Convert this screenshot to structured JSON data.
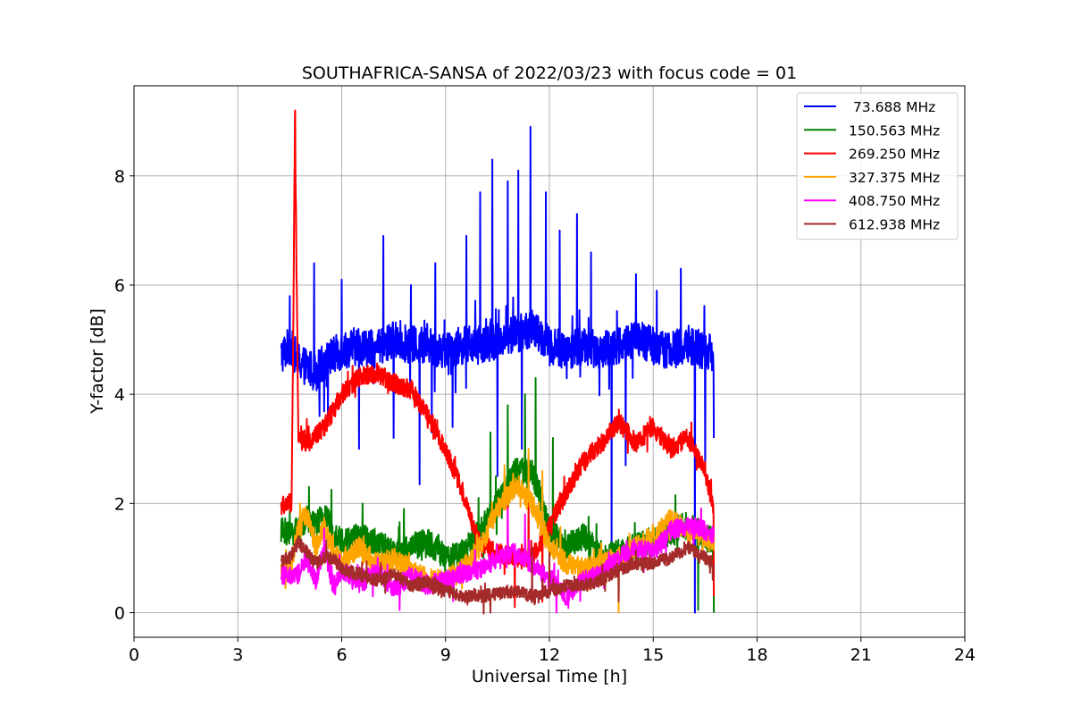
{
  "chart_data": {
    "type": "line",
    "title": "SOUTHAFRICA-SANSA of 2022/03/23 with focus code = 01",
    "xlabel": "Universal Time [h]",
    "ylabel": "Y-factor [dB]",
    "xlim": [
      0,
      24
    ],
    "ylim": [
      -0.45,
      9.65
    ],
    "xticks": [
      0,
      3,
      6,
      9,
      12,
      15,
      18,
      21,
      24
    ],
    "yticks": [
      0,
      2,
      4,
      6,
      8
    ],
    "grid": true,
    "legend_position": "top-right",
    "series": [
      {
        "name": " 73.688 MHz",
        "color": "#0000ff",
        "x": [
          4.25,
          4.5,
          4.75,
          5.0,
          5.25,
          5.5,
          5.75,
          6.0,
          6.5,
          7.0,
          7.5,
          8.0,
          8.5,
          9.0,
          9.5,
          10.0,
          10.5,
          11.0,
          11.5,
          12.0,
          12.5,
          13.0,
          13.5,
          14.0,
          14.5,
          15.0,
          15.5,
          16.0,
          16.5,
          16.75
        ],
        "y": [
          4.7,
          4.9,
          4.6,
          4.5,
          4.4,
          4.6,
          4.7,
          4.8,
          4.9,
          4.8,
          5.0,
          4.9,
          4.9,
          4.8,
          4.9,
          4.9,
          5.0,
          5.1,
          5.2,
          4.9,
          4.8,
          4.9,
          4.8,
          4.9,
          5.0,
          4.9,
          4.8,
          4.9,
          4.8,
          4.7
        ],
        "noise": 0.35,
        "spikes": [
          [
            4.5,
            5.8
          ],
          [
            5.2,
            6.4
          ],
          [
            5.6,
            7.2
          ],
          [
            6.0,
            6.1
          ],
          [
            7.2,
            6.9
          ],
          [
            8.0,
            6.0
          ],
          [
            8.7,
            6.4
          ],
          [
            9.2,
            6.8
          ],
          [
            9.6,
            6.9
          ],
          [
            10.0,
            7.7
          ],
          [
            10.35,
            8.3
          ],
          [
            10.8,
            7.9
          ],
          [
            11.1,
            8.1
          ],
          [
            11.45,
            8.9
          ],
          [
            11.9,
            7.7
          ],
          [
            12.3,
            7.0
          ],
          [
            12.8,
            7.3
          ],
          [
            13.2,
            6.6
          ],
          [
            13.8,
            6.5
          ],
          [
            14.5,
            6.2
          ],
          [
            15.1,
            5.9
          ],
          [
            15.8,
            6.3
          ],
          [
            16.5,
            6.6
          ]
        ],
        "dips": [
          [
            5.6,
            3.5
          ],
          [
            6.5,
            3.0
          ],
          [
            7.5,
            3.2
          ],
          [
            8.25,
            2.35
          ],
          [
            8.6,
            3.3
          ],
          [
            9.2,
            3.4
          ],
          [
            10.5,
            2.5
          ],
          [
            11.2,
            3.0
          ],
          [
            13.8,
            1.2
          ],
          [
            14.2,
            2.7
          ],
          [
            16.2,
            0.0
          ],
          [
            16.5,
            2.5
          ],
          [
            16.75,
            3.2
          ]
        ]
      },
      {
        "name": "150.563 MHz",
        "color": "#008000",
        "x": [
          4.25,
          4.5,
          4.75,
          5.0,
          5.25,
          5.5,
          5.75,
          6.0,
          6.5,
          7.0,
          7.5,
          8.0,
          8.5,
          9.0,
          9.5,
          10.0,
          10.5,
          11.0,
          11.5,
          12.0,
          12.5,
          13.0,
          13.5,
          14.0,
          14.5,
          15.0,
          15.5,
          16.0,
          16.5,
          16.75
        ],
        "y": [
          1.5,
          1.45,
          1.5,
          1.7,
          1.6,
          1.8,
          1.5,
          1.3,
          1.4,
          1.3,
          1.1,
          1.2,
          1.3,
          1.0,
          1.1,
          1.5,
          2.0,
          2.6,
          2.6,
          1.5,
          1.2,
          1.4,
          1.0,
          1.1,
          1.2,
          1.3,
          1.5,
          1.6,
          1.4,
          1.3
        ],
        "noise": 0.25,
        "spikes": [
          [
            5.7,
            2.25
          ],
          [
            6.6,
            2.0
          ],
          [
            7.8,
            1.9
          ],
          [
            10.3,
            3.3
          ],
          [
            10.8,
            3.8
          ],
          [
            11.3,
            4.0
          ],
          [
            11.6,
            4.3
          ],
          [
            12.1,
            3.2
          ]
        ],
        "dips": [
          [
            16.3,
            0.05
          ],
          [
            16.75,
            0.0
          ]
        ]
      },
      {
        "name": "269.250 MHz",
        "color": "#ff0000",
        "x": [
          4.25,
          4.55,
          4.6,
          4.65,
          4.7,
          4.75,
          5.0,
          5.5,
          6.0,
          6.5,
          7.0,
          7.5,
          8.0,
          8.5,
          9.0,
          9.5,
          9.8,
          10.0,
          10.5,
          11.0,
          11.5,
          12.0,
          12.5,
          13.0,
          13.5,
          14.0,
          14.5,
          15.0,
          15.5,
          16.0,
          16.5,
          16.75
        ],
        "y": [
          1.95,
          2.0,
          5.0,
          9.1,
          6.0,
          3.3,
          3.1,
          3.4,
          4.0,
          4.3,
          4.4,
          4.2,
          4.1,
          3.6,
          3.0,
          2.2,
          1.6,
          1.3,
          1.1,
          1.0,
          1.0,
          1.6,
          2.2,
          2.8,
          3.1,
          3.5,
          3.1,
          3.4,
          3.0,
          3.2,
          2.6,
          1.9
        ],
        "noise": 0.18,
        "spikes": [
          [
            4.66,
            9.2
          ],
          [
            10.8,
            2.3
          ],
          [
            11.4,
            2.4
          ],
          [
            16.75,
            2.5
          ]
        ],
        "dips": [
          [
            11.0,
            0.1
          ],
          [
            11.8,
            0.2
          ],
          [
            16.75,
            0.3
          ]
        ]
      },
      {
        "name": "327.375 MHz",
        "color": "#ffa500",
        "x": [
          4.25,
          4.5,
          4.75,
          5.0,
          5.25,
          5.5,
          5.75,
          6.0,
          6.5,
          7.0,
          7.5,
          8.0,
          8.5,
          9.0,
          9.5,
          10.0,
          10.5,
          11.0,
          11.5,
          12.0,
          12.5,
          13.0,
          13.5,
          14.0,
          14.5,
          15.0,
          15.5,
          16.0,
          16.5,
          16.75
        ],
        "y": [
          0.75,
          0.8,
          1.5,
          1.8,
          1.2,
          1.6,
          1.1,
          0.9,
          1.2,
          0.9,
          1.0,
          0.8,
          0.6,
          0.6,
          0.8,
          1.2,
          1.9,
          2.3,
          2.0,
          1.2,
          0.9,
          0.8,
          0.9,
          1.0,
          1.2,
          1.4,
          1.7,
          1.5,
          1.4,
          1.3
        ],
        "noise": 0.2,
        "spikes": [
          [
            4.8,
            2.0
          ],
          [
            10.7,
            2.7
          ],
          [
            11.4,
            3.0
          ],
          [
            11.8,
            2.6
          ]
        ],
        "dips": [
          [
            14.0,
            0.0
          ]
        ]
      },
      {
        "name": "408.750 MHz",
        "color": "#ff00ff",
        "x": [
          4.25,
          4.5,
          4.75,
          5.0,
          5.25,
          5.5,
          5.75,
          6.0,
          6.5,
          7.0,
          7.5,
          8.0,
          8.5,
          9.0,
          9.5,
          10.0,
          10.5,
          11.0,
          11.5,
          12.0,
          12.5,
          13.0,
          13.5,
          14.0,
          14.5,
          15.0,
          15.5,
          16.0,
          16.5,
          16.75
        ],
        "y": [
          0.7,
          0.65,
          0.7,
          1.0,
          0.6,
          1.2,
          0.5,
          0.8,
          0.5,
          0.8,
          0.4,
          0.7,
          0.5,
          0.6,
          0.7,
          0.8,
          1.0,
          1.1,
          0.9,
          0.6,
          0.3,
          0.6,
          0.7,
          1.0,
          1.2,
          1.1,
          1.5,
          1.6,
          1.5,
          1.4
        ],
        "noise": 0.18,
        "spikes": [
          [
            10.8,
            1.9
          ],
          [
            11.3,
            1.8
          ]
        ],
        "dips": [
          [
            12.2,
            0.0
          ]
        ]
      },
      {
        "name": "612.938 MHz",
        "color": "#a52a2a",
        "x": [
          4.25,
          4.5,
          4.75,
          5.0,
          5.25,
          5.5,
          5.75,
          6.0,
          6.5,
          7.0,
          7.5,
          8.0,
          8.5,
          9.0,
          9.5,
          10.0,
          10.5,
          11.0,
          11.5,
          12.0,
          12.5,
          13.0,
          13.5,
          14.0,
          14.5,
          15.0,
          15.5,
          16.0,
          16.5,
          16.75
        ],
        "y": [
          0.95,
          1.0,
          1.3,
          1.1,
          0.9,
          1.0,
          1.0,
          0.8,
          0.7,
          0.6,
          0.7,
          0.5,
          0.55,
          0.4,
          0.3,
          0.3,
          0.35,
          0.4,
          0.3,
          0.4,
          0.5,
          0.5,
          0.6,
          0.8,
          0.9,
          0.9,
          1.0,
          1.2,
          1.0,
          0.9
        ],
        "noise": 0.12,
        "spikes": [
          [
            11.5,
            1.2
          ],
          [
            12.0,
            1.1
          ]
        ],
        "dips": [
          [
            10.3,
            0.0
          ],
          [
            14.0,
            0.2
          ]
        ]
      }
    ]
  }
}
